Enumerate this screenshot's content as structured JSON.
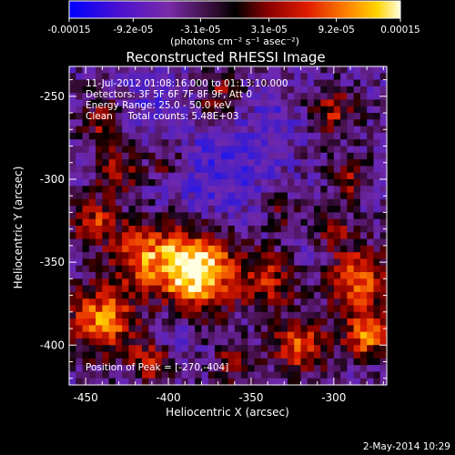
{
  "colorbar": {
    "tick_labels": [
      "-0.00015",
      "-9.2e-05",
      "-3.1e-05",
      "3.1e-05",
      "9.2e-05",
      "0.00015"
    ],
    "tick_values": [
      -0.00015,
      -9.2e-05,
      -3.1e-05,
      3.1e-05,
      9.2e-05,
      0.00015
    ],
    "range": [
      -0.00015,
      0.00015
    ],
    "units_label": "(photons cm⁻² s⁻¹ asec⁻²)",
    "colors": [
      "#0000ff",
      "#5a00c8",
      "#7a2ba8",
      "#000000",
      "#8a0000",
      "#e01c00",
      "#ff8c00",
      "#ffd400",
      "#ffffe0"
    ]
  },
  "chart_data": {
    "type": "heatmap",
    "title": "Reconstructed RHESSI Image",
    "xlabel": "Heliocentric X (arcsec)",
    "ylabel": "Heliocentric Y (arcsec)",
    "xlim": [
      -460,
      -268
    ],
    "ylim": [
      -424,
      -232
    ],
    "x_ticks": [
      -450,
      -400,
      -350,
      -300
    ],
    "y_ticks": [
      -250,
      -300,
      -350,
      -400
    ],
    "x_tick_labels": [
      "-450",
      "-400",
      "-350",
      "-300"
    ],
    "y_tick_labels": [
      "-250",
      "-300",
      "-350",
      "-400"
    ],
    "annotations": [
      "11-Jul-2012 01:08:16.000 to 01:13:10.000",
      "Detectors: 3F 5F 6F 7F 8F 9F, Att 0",
      "Energy Range: 25.0 - 50.0 keV",
      "Clean     Total counts: 5.48E+03"
    ],
    "peak_label": "Position of Peak = [-270,-404]",
    "peak_position": [
      -270,
      -404
    ],
    "grid_size": 48,
    "blobs": [
      {
        "x": -383,
        "y": -355,
        "s": 16,
        "a": 1.0
      },
      {
        "x": -415,
        "y": -345,
        "s": 14,
        "a": 0.55
      },
      {
        "x": -440,
        "y": -385,
        "s": 14,
        "a": 0.7
      },
      {
        "x": -445,
        "y": -325,
        "s": 10,
        "a": 0.45
      },
      {
        "x": -430,
        "y": -295,
        "s": 10,
        "a": 0.35
      },
      {
        "x": -440,
        "y": -265,
        "s": 10,
        "a": 0.35
      },
      {
        "x": -400,
        "y": -290,
        "s": 8,
        "a": 0.3
      },
      {
        "x": -340,
        "y": -360,
        "s": 12,
        "a": 0.45
      },
      {
        "x": -320,
        "y": -400,
        "s": 12,
        "a": 0.55
      },
      {
        "x": -285,
        "y": -360,
        "s": 14,
        "a": 0.6
      },
      {
        "x": -280,
        "y": -395,
        "s": 10,
        "a": 0.6
      },
      {
        "x": -300,
        "y": -260,
        "s": 10,
        "a": 0.4
      },
      {
        "x": -290,
        "y": -300,
        "s": 9,
        "a": 0.35
      },
      {
        "x": -370,
        "y": -250,
        "s": 9,
        "a": 0.35
      },
      {
        "x": -330,
        "y": -320,
        "s": 8,
        "a": 0.25
      },
      {
        "x": -360,
        "y": -410,
        "s": 9,
        "a": 0.35
      },
      {
        "x": -410,
        "y": -410,
        "s": 9,
        "a": 0.45
      },
      {
        "x": -300,
        "y": -330,
        "s": 8,
        "a": 0.3
      }
    ],
    "dark_regions": [
      {
        "x": -370,
        "y": -295,
        "s": 22,
        "a": 0.8
      },
      {
        "x": -410,
        "y": -250,
        "s": 14,
        "a": 0.5
      },
      {
        "x": -335,
        "y": -265,
        "s": 12,
        "a": 0.45
      },
      {
        "x": -395,
        "y": -395,
        "s": 9,
        "a": 0.45
      },
      {
        "x": -315,
        "y": -350,
        "s": 8,
        "a": 0.35
      }
    ]
  },
  "timestamp": "2-May-2014 10:29"
}
